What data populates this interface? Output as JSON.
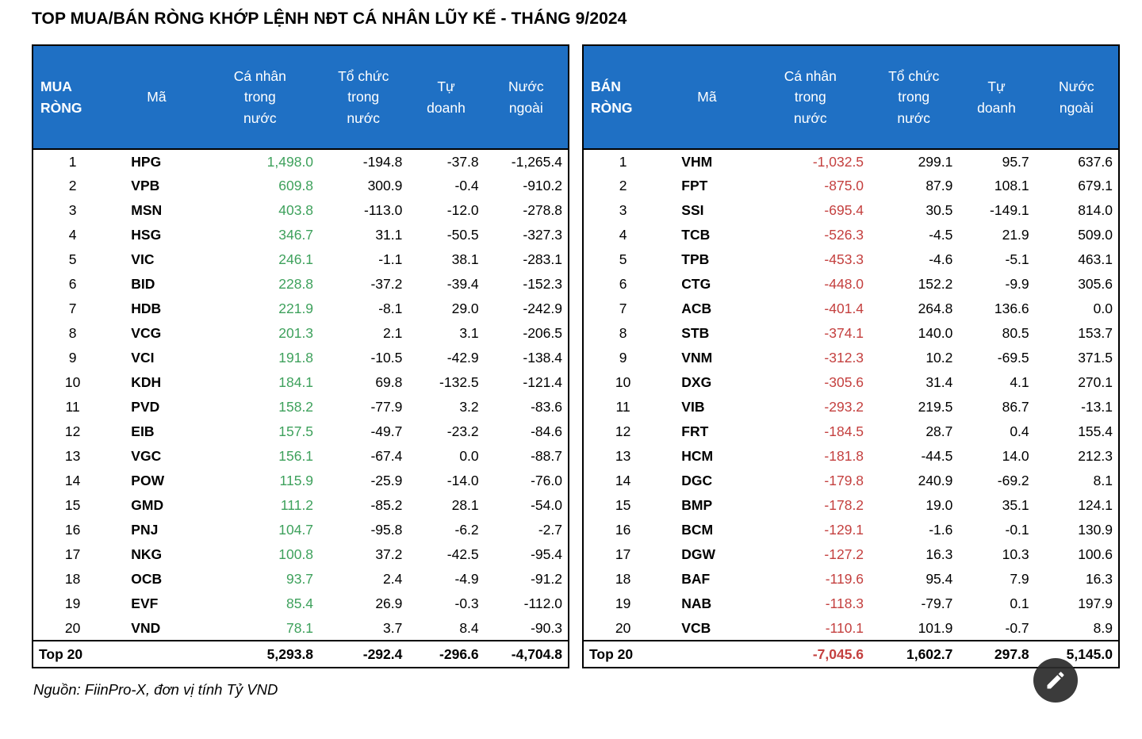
{
  "title": "TOP MUA/BÁN RÒNG KHỚP LỆNH NĐT CÁ NHÂN LŨY KẾ  - THÁNG 9/2024",
  "source_note": "Nguồn: FiinPro-X, đơn vị tính Tỷ VND",
  "colors": {
    "header_blue": "#1F70C4",
    "buy_green": "#3EA15C",
    "sell_red": "#C4403F",
    "background": "#FFFFFF",
    "text": "#000000"
  },
  "chart_data": [
    {
      "type": "table",
      "group_label": "MUA RÒNG",
      "columns": [
        "Mã",
        "Cá nhân\ntrong\nnước",
        "Tổ chức\ntrong\nnước",
        "Tự\ndoanh",
        "Nước\nngoài"
      ],
      "rows": [
        [
          "1",
          "HPG",
          "1,498.0",
          "-194.8",
          "-37.8",
          "-1,265.4"
        ],
        [
          "2",
          "VPB",
          "609.8",
          "300.9",
          "-0.4",
          "-910.2"
        ],
        [
          "3",
          "MSN",
          "403.8",
          "-113.0",
          "-12.0",
          "-278.8"
        ],
        [
          "4",
          "HSG",
          "346.7",
          "31.1",
          "-50.5",
          "-327.3"
        ],
        [
          "5",
          "VIC",
          "246.1",
          "-1.1",
          "38.1",
          "-283.1"
        ],
        [
          "6",
          "BID",
          "228.8",
          "-37.2",
          "-39.4",
          "-152.3"
        ],
        [
          "7",
          "HDB",
          "221.9",
          "-8.1",
          "29.0",
          "-242.9"
        ],
        [
          "8",
          "VCG",
          "201.3",
          "2.1",
          "3.1",
          "-206.5"
        ],
        [
          "9",
          "VCI",
          "191.8",
          "-10.5",
          "-42.9",
          "-138.4"
        ],
        [
          "10",
          "KDH",
          "184.1",
          "69.8",
          "-132.5",
          "-121.4"
        ],
        [
          "11",
          "PVD",
          "158.2",
          "-77.9",
          "3.2",
          "-83.6"
        ],
        [
          "12",
          "EIB",
          "157.5",
          "-49.7",
          "-23.2",
          "-84.6"
        ],
        [
          "13",
          "VGC",
          "156.1",
          "-67.4",
          "0.0",
          "-88.7"
        ],
        [
          "14",
          "POW",
          "115.9",
          "-25.9",
          "-14.0",
          "-76.0"
        ],
        [
          "15",
          "GMD",
          "111.2",
          "-85.2",
          "28.1",
          "-54.0"
        ],
        [
          "16",
          "PNJ",
          "104.7",
          "-95.8",
          "-6.2",
          "-2.7"
        ],
        [
          "17",
          "NKG",
          "100.8",
          "37.2",
          "-42.5",
          "-95.4"
        ],
        [
          "18",
          "OCB",
          "93.7",
          "2.4",
          "-4.9",
          "-91.2"
        ],
        [
          "19",
          "EVF",
          "85.4",
          "26.9",
          "-0.3",
          "-112.0"
        ],
        [
          "20",
          "VND",
          "78.1",
          "3.7",
          "8.4",
          "-90.3"
        ]
      ],
      "total": {
        "label": "Top 20",
        "values": [
          "5,293.8",
          "-292.4",
          "-296.6",
          "-4,704.8"
        ]
      }
    },
    {
      "type": "table",
      "group_label": "BÁN\nRÒNG",
      "columns": [
        "Mã",
        "Cá nhân\ntrong\nnước",
        "Tổ chức\ntrong\nnước",
        "Tự\ndoanh",
        "Nước\nngoài"
      ],
      "rows": [
        [
          "1",
          "VHM",
          "-1,032.5",
          "299.1",
          "95.7",
          "637.6"
        ],
        [
          "2",
          "FPT",
          "-875.0",
          "87.9",
          "108.1",
          "679.1"
        ],
        [
          "3",
          "SSI",
          "-695.4",
          "30.5",
          "-149.1",
          "814.0"
        ],
        [
          "4",
          "TCB",
          "-526.3",
          "-4.5",
          "21.9",
          "509.0"
        ],
        [
          "5",
          "TPB",
          "-453.3",
          "-4.6",
          "-5.1",
          "463.1"
        ],
        [
          "6",
          "CTG",
          "-448.0",
          "152.2",
          "-9.9",
          "305.6"
        ],
        [
          "7",
          "ACB",
          "-401.4",
          "264.8",
          "136.6",
          "0.0"
        ],
        [
          "8",
          "STB",
          "-374.1",
          "140.0",
          "80.5",
          "153.7"
        ],
        [
          "9",
          "VNM",
          "-312.3",
          "10.2",
          "-69.5",
          "371.5"
        ],
        [
          "10",
          "DXG",
          "-305.6",
          "31.4",
          "4.1",
          "270.1"
        ],
        [
          "11",
          "VIB",
          "-293.2",
          "219.5",
          "86.7",
          "-13.1"
        ],
        [
          "12",
          "FRT",
          "-184.5",
          "28.7",
          "0.4",
          "155.4"
        ],
        [
          "13",
          "HCM",
          "-181.8",
          "-44.5",
          "14.0",
          "212.3"
        ],
        [
          "14",
          "DGC",
          "-179.8",
          "240.9",
          "-69.2",
          "8.1"
        ],
        [
          "15",
          "BMP",
          "-178.2",
          "19.0",
          "35.1",
          "124.1"
        ],
        [
          "16",
          "BCM",
          "-129.1",
          "-1.6",
          "-0.1",
          "130.9"
        ],
        [
          "17",
          "DGW",
          "-127.2",
          "16.3",
          "10.3",
          "100.6"
        ],
        [
          "18",
          "BAF",
          "-119.6",
          "95.4",
          "7.9",
          "16.3"
        ],
        [
          "19",
          "NAB",
          "-118.3",
          "-79.7",
          "0.1",
          "197.9"
        ],
        [
          "20",
          "VCB",
          "-110.1",
          "101.9",
          "-0.7",
          "8.9"
        ]
      ],
      "total": {
        "label": "Top 20",
        "values": [
          "-7,045.6",
          "1,602.7",
          "297.8",
          "5,145.0"
        ]
      }
    }
  ]
}
